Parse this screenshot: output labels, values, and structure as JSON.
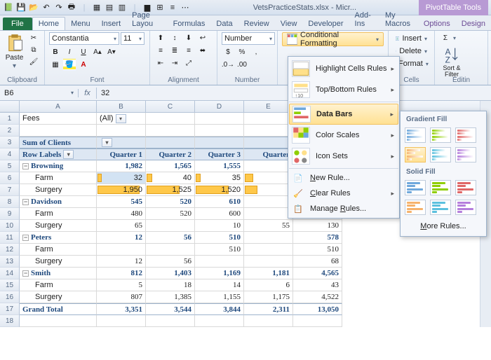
{
  "title": "VetsPracticeStats.xlsx - Micr...",
  "pivot_tools_label": "PivotTable Tools",
  "tabs": {
    "file": "File",
    "home": "Home",
    "menu": "Menu",
    "insert": "Insert",
    "page": "Page Layou",
    "formulas": "Formulas",
    "data": "Data",
    "review": "Review",
    "view": "View",
    "developer": "Developer",
    "addins": "Add-Ins",
    "mymacros": "My Macros",
    "options": "Options",
    "design": "Design"
  },
  "ribbon": {
    "clipboard": {
      "label": "Clipboard",
      "paste": "Paste"
    },
    "font": {
      "label": "Font",
      "name": "Constantia",
      "size": "11"
    },
    "alignment": {
      "label": "Alignment"
    },
    "number": {
      "label": "Number",
      "format": "Number"
    },
    "cf_btn": "Conditional Formatting",
    "cells": {
      "label": "Cells",
      "insert": "Insert",
      "delete": "Delete",
      "format": "Format"
    },
    "editing": {
      "label": "Editin",
      "sort": "Sort & Filter"
    }
  },
  "namebox": "B6",
  "formula": "32",
  "colwidths": {
    "A": 110,
    "B": 70,
    "C": 70,
    "D": 70,
    "E": 70,
    "F": 70
  },
  "cols": [
    "A",
    "B",
    "C",
    "D",
    "E",
    "F"
  ],
  "pivot": {
    "fees_label": "Fees",
    "fees_val": "(All)",
    "sum_label": "Sum of Clients",
    "rowlabels": "Row Labels",
    "qtrs": [
      "Quarter 1",
      "Quarter 2",
      "Quarter 3",
      "Quarter",
      "Quarter"
    ],
    "rows": [
      {
        "n": 5,
        "t": "group",
        "label": "Browning",
        "v": [
          "1,982",
          "1,565",
          "1,555",
          "",
          ""
        ]
      },
      {
        "n": 6,
        "t": "sub",
        "label": "Farm",
        "v": [
          "32",
          "40",
          "35",
          "",
          ""
        ],
        "bar": [
          6,
          8,
          7,
          12,
          null
        ]
      },
      {
        "n": 7,
        "t": "sub",
        "label": "Surgery",
        "v": [
          "1,950",
          "1,525",
          "1,520",
          "",
          ""
        ],
        "bar": [
          60,
          47,
          47,
          18,
          null
        ]
      },
      {
        "n": 8,
        "t": "group",
        "label": "Davidson",
        "v": [
          "545",
          "520",
          "610",
          "",
          ""
        ]
      },
      {
        "n": 9,
        "t": "sub",
        "label": "Farm",
        "v": [
          "480",
          "520",
          "600",
          "",
          ""
        ]
      },
      {
        "n": 10,
        "t": "sub",
        "label": "Surgery",
        "v": [
          "65",
          "",
          "10",
          "55",
          "130"
        ]
      },
      {
        "n": 11,
        "t": "group",
        "label": "Peters",
        "v": [
          "12",
          "56",
          "510",
          "",
          "578"
        ]
      },
      {
        "n": 12,
        "t": "sub",
        "label": "Farm",
        "v": [
          "",
          "",
          "510",
          "",
          "510"
        ]
      },
      {
        "n": 13,
        "t": "sub",
        "label": "Surgery",
        "v": [
          "12",
          "56",
          "",
          "",
          "68"
        ]
      },
      {
        "n": 14,
        "t": "group",
        "label": "Smith",
        "v": [
          "812",
          "1,403",
          "1,169",
          "1,181",
          "4,565"
        ]
      },
      {
        "n": 15,
        "t": "sub",
        "label": "Farm",
        "v": [
          "5",
          "18",
          "14",
          "6",
          "43"
        ]
      },
      {
        "n": 16,
        "t": "sub",
        "label": "Surgery",
        "v": [
          "807",
          "1,385",
          "1,155",
          "1,175",
          "4,522"
        ]
      }
    ],
    "grand": {
      "label": "Grand Total",
      "v": [
        "3,351",
        "3,544",
        "3,844",
        "2,311",
        "13,050"
      ]
    }
  },
  "cf_menu": {
    "highlight": "Highlight Cells Rules",
    "topbottom": "Top/Bottom Rules",
    "databars": "Data Bars",
    "colorscales": "Color Scales",
    "iconsets": "Icon Sets",
    "newrule": "New Rule...",
    "clear": "Clear Rules",
    "manage": "Manage Rules..."
  },
  "gallery": {
    "gradient_hdr": "Gradient Fill",
    "solid_hdr": "Solid Fill",
    "colors_row1": [
      "#6fa8dc",
      "#8fce00",
      "#e06666"
    ],
    "colors_row2": [
      "#f6b26b",
      "#5bc0de",
      "#b57edc"
    ],
    "more": "More Rules..."
  }
}
